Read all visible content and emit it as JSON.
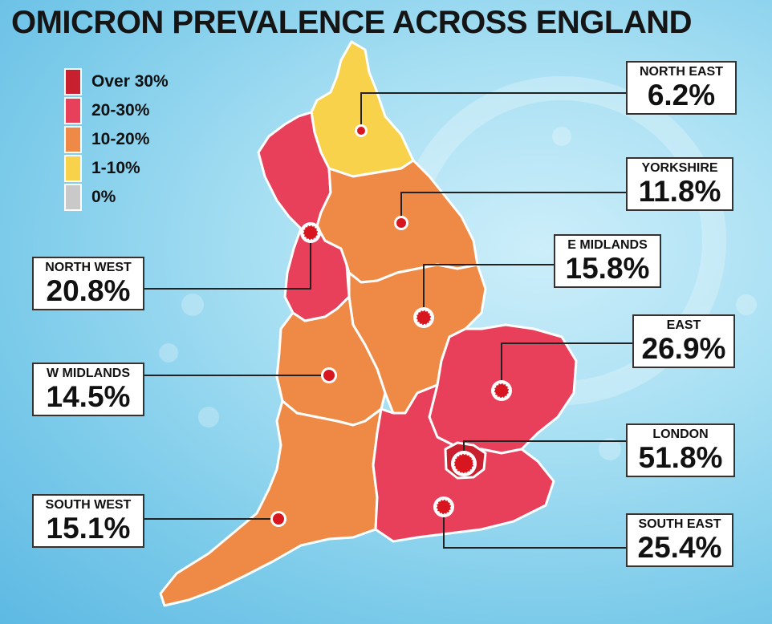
{
  "title": "OMICRON PREVALENCE ACROSS ENGLAND",
  "legend": [
    {
      "label": "Over 30%",
      "color": "#c8202e"
    },
    {
      "label": "20-30%",
      "color": "#e8405a"
    },
    {
      "label": "10-20%",
      "color": "#ef8a46"
    },
    {
      "label": "1-10%",
      "color": "#f8d24a"
    },
    {
      "label": "0%",
      "color": "#c9c9c9"
    }
  ],
  "regions": {
    "north_east": {
      "name": "NORTH EAST",
      "value": "6.2%",
      "color": "#f8d24a"
    },
    "yorkshire": {
      "name": "YORKSHIRE",
      "value": "11.8%",
      "color": "#ef8a46"
    },
    "north_west": {
      "name": "NORTH WEST",
      "value": "20.8%",
      "color": "#e8405a"
    },
    "e_midlands": {
      "name": "E MIDLANDS",
      "value": "15.8%",
      "color": "#ef8a46"
    },
    "east": {
      "name": "EAST",
      "value": "26.9%",
      "color": "#e8405a"
    },
    "w_midlands": {
      "name": "W MIDLANDS",
      "value": "14.5%",
      "color": "#ef8a46"
    },
    "london": {
      "name": "LONDON",
      "value": "51.8%",
      "color": "#c8202e"
    },
    "south_west": {
      "name": "SOUTH WEST",
      "value": "15.1%",
      "color": "#ef8a46"
    },
    "south_east": {
      "name": "SOUTH EAST",
      "value": "25.4%",
      "color": "#e8405a"
    }
  },
  "colors": {
    "border": "#ffffff",
    "marker": "#d8161f",
    "leader": "#222222"
  },
  "icons": {
    "marker": "virus-marker-icon"
  }
}
